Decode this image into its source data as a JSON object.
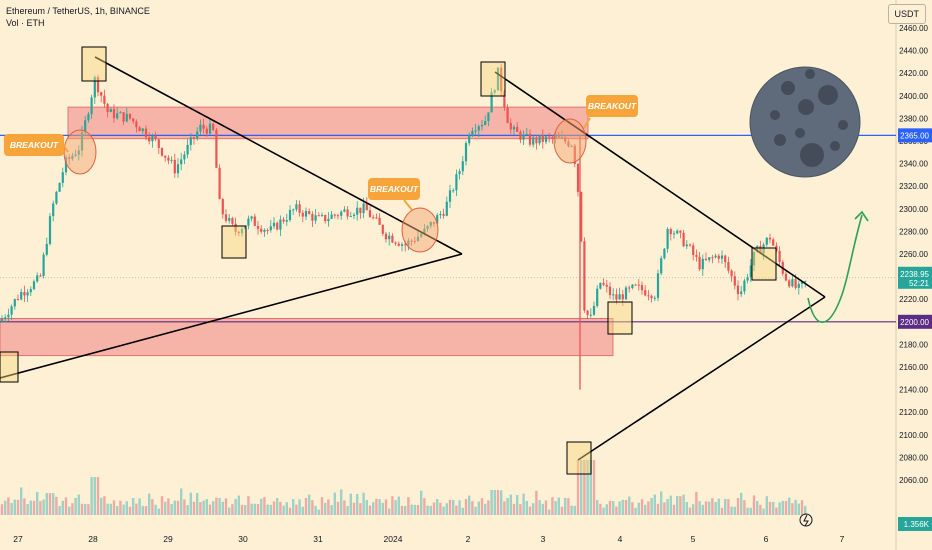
{
  "header": {
    "symbol": "Ethereum / TetherUS, 1h, BINANCE",
    "volume_label": "Vol · ETH"
  },
  "currency_button": "USDT",
  "chart_data": {
    "type": "candlestick",
    "x_ticks": [
      "27",
      "28",
      "29",
      "30",
      "31",
      "2024",
      "2",
      "3",
      "4",
      "5",
      "6",
      "7"
    ],
    "y_ticks": [
      2060,
      2080,
      2100,
      2120,
      2140,
      2160,
      2180,
      2200,
      2220,
      2240,
      2260,
      2280,
      2300,
      2320,
      2340,
      2360,
      2380,
      2400,
      2420,
      2440,
      2460
    ],
    "ylim": [
      2048,
      2472
    ],
    "price_path": [
      [
        0,
        2200
      ],
      [
        20,
        2225
      ],
      [
        40,
        2238
      ],
      [
        52,
        2300
      ],
      [
        65,
        2340
      ],
      [
        80,
        2355
      ],
      [
        95,
        2415
      ],
      [
        108,
        2385
      ],
      [
        130,
        2380
      ],
      [
        155,
        2360
      ],
      [
        175,
        2335
      ],
      [
        200,
        2372
      ],
      [
        213,
        2370
      ],
      [
        220,
        2300
      ],
      [
        235,
        2280
      ],
      [
        250,
        2290
      ],
      [
        270,
        2280
      ],
      [
        295,
        2300
      ],
      [
        320,
        2290
      ],
      [
        345,
        2298
      ],
      [
        365,
        2300
      ],
      [
        385,
        2278
      ],
      [
        405,
        2268
      ],
      [
        425,
        2280
      ],
      [
        445,
        2300
      ],
      [
        460,
        2335
      ],
      [
        470,
        2372
      ],
      [
        485,
        2378
      ],
      [
        498,
        2420
      ],
      [
        510,
        2370
      ],
      [
        530,
        2360
      ],
      [
        555,
        2362
      ],
      [
        573,
        2358
      ],
      [
        580,
        2300
      ],
      [
        584,
        2215
      ],
      [
        590,
        2200
      ],
      [
        600,
        2235
      ],
      [
        615,
        2220
      ],
      [
        635,
        2230
      ],
      [
        655,
        2225
      ],
      [
        668,
        2285
      ],
      [
        685,
        2270
      ],
      [
        700,
        2250
      ],
      [
        720,
        2260
      ],
      [
        740,
        2225
      ],
      [
        755,
        2260
      ],
      [
        770,
        2275
      ],
      [
        785,
        2240
      ],
      [
        798,
        2228
      ],
      [
        807,
        2236
      ]
    ],
    "volume_heights": [
      6,
      4,
      7,
      5,
      8,
      4,
      12,
      7,
      5,
      8,
      4,
      10,
      6,
      8,
      5,
      3,
      6,
      9,
      5,
      4,
      7,
      3,
      6,
      5,
      8,
      4,
      5,
      6,
      3,
      4,
      5,
      9,
      6,
      3,
      4,
      7,
      5,
      4,
      3,
      6,
      4,
      5,
      3,
      7,
      4,
      5,
      8,
      6,
      4,
      3
    ],
    "levels": [
      {
        "price": "2365.00",
        "color": "#2962ff"
      },
      {
        "price": "2200.00",
        "color": "#5b2c83"
      }
    ],
    "current_price": "2238.95",
    "countdown": "52:21",
    "volume_value": "1.356K",
    "zones": [
      {
        "from": 2362,
        "to": 2390,
        "color": "#f28b8b"
      },
      {
        "from": 2170,
        "to": 2203,
        "color": "#f28b8b"
      }
    ],
    "annotations": [
      "BREAKOUT",
      "BREAKOUT",
      "BREAKOUT"
    ],
    "colors": {
      "up": "#26a69a",
      "down": "#ef5350",
      "bg": "#fdf0d5",
      "label": "#f7a53a"
    }
  }
}
